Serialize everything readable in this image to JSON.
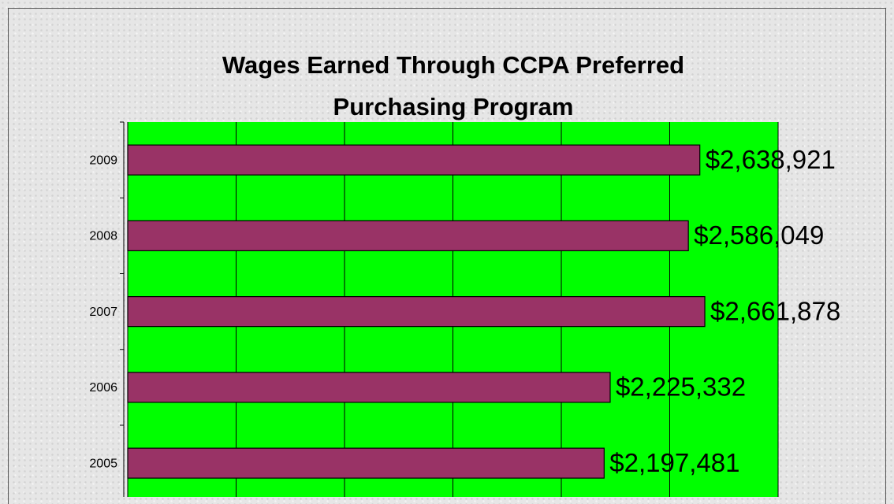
{
  "chart_data": {
    "type": "barh",
    "title": "Wages Earned Through CCPA Preferred Purchasing Program",
    "categories": [
      "2009",
      "2008",
      "2007",
      "2006",
      "2005"
    ],
    "values": [
      2638921,
      2586049,
      2661878,
      2225332,
      2197481
    ],
    "value_labels": [
      "$2,638,921",
      "$2,586,049",
      "$2,661,878",
      "$2,225,332",
      "$2,197,481"
    ],
    "color": "#993366",
    "plot_color": "#00ff00",
    "xlim": [
      0,
      3000000
    ],
    "xticks": [
      0,
      500000,
      1000000,
      1500000,
      2000000,
      2500000,
      3000000
    ],
    "grid": true
  }
}
